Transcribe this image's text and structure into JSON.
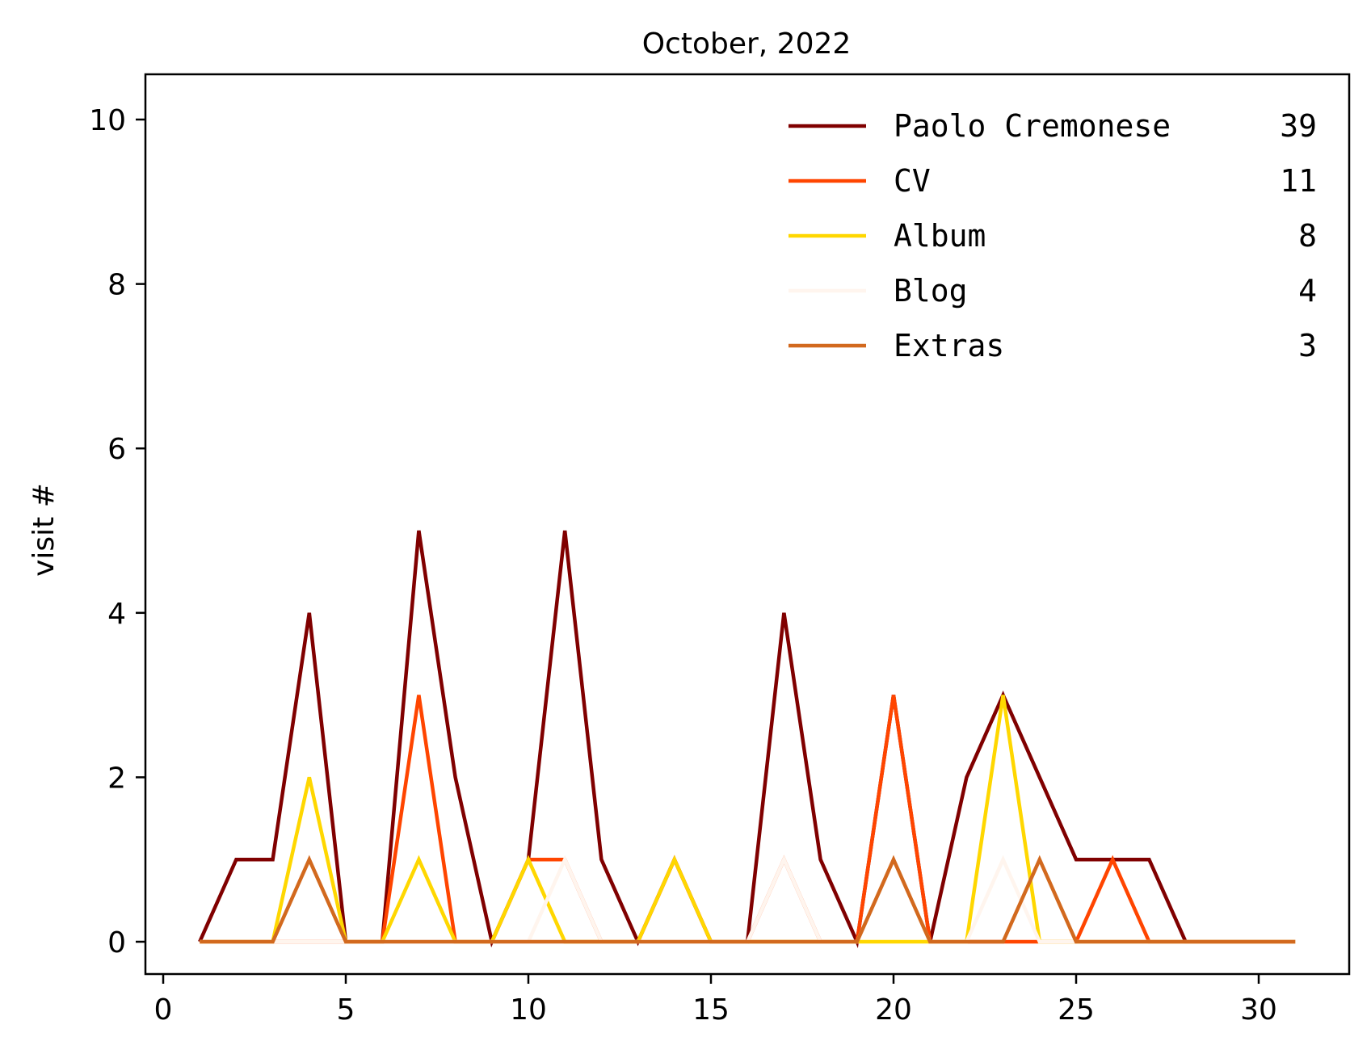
{
  "chart_data": {
    "type": "line",
    "title": "October, 2022",
    "xlabel": "",
    "ylabel": "visit #",
    "xlim": [
      -0.5,
      32.5
    ],
    "ylim": [
      -0.4,
      10.5
    ],
    "x_ticks": [
      0,
      5,
      10,
      15,
      20,
      25,
      30
    ],
    "y_ticks": [
      0,
      2,
      4,
      6,
      8,
      10
    ],
    "grid": false,
    "legend_position": "top-right",
    "x": [
      1,
      2,
      3,
      4,
      5,
      6,
      7,
      8,
      9,
      10,
      11,
      12,
      13,
      14,
      15,
      16,
      17,
      18,
      19,
      20,
      21,
      22,
      23,
      24,
      25,
      26,
      27,
      28,
      29,
      30,
      31
    ],
    "series": [
      {
        "name": "Paolo Cremonese",
        "total": "39",
        "color": "#800000",
        "values": [
          0,
          1,
          1,
          4,
          0,
          0,
          5,
          2,
          0,
          1,
          5,
          1,
          0,
          1,
          0,
          0,
          4,
          1,
          0,
          3,
          0,
          2,
          3,
          2,
          1,
          1,
          1,
          0,
          0,
          0,
          0
        ]
      },
      {
        "name": "CV",
        "total": "11",
        "color": "#ff4500",
        "values": [
          0,
          0,
          0,
          0,
          0,
          0,
          3,
          0,
          0,
          1,
          1,
          0,
          0,
          1,
          0,
          0,
          1,
          0,
          0,
          3,
          0,
          0,
          0,
          0,
          0,
          1,
          0,
          0,
          0,
          0,
          0
        ]
      },
      {
        "name": "Album",
        "total": "8",
        "color": "#ffd700",
        "values": [
          0,
          0,
          0,
          2,
          0,
          0,
          1,
          0,
          0,
          1,
          0,
          0,
          0,
          1,
          0,
          0,
          0,
          0,
          0,
          0,
          0,
          0,
          3,
          0,
          0,
          0,
          0,
          0,
          0,
          0,
          0
        ]
      },
      {
        "name": "Blog",
        "total": "4",
        "color": "#fff5ee",
        "values": [
          0,
          0,
          0,
          0,
          0,
          0,
          0,
          0,
          0,
          0,
          1,
          0,
          0,
          0,
          0,
          0,
          1,
          0,
          0,
          1,
          0,
          0,
          1,
          0,
          0,
          0,
          0,
          0,
          0,
          0,
          0
        ]
      },
      {
        "name": "Extras",
        "total": "3",
        "color": "#d2691e",
        "values": [
          0,
          0,
          0,
          1,
          0,
          0,
          0,
          0,
          0,
          0,
          0,
          0,
          0,
          0,
          0,
          0,
          0,
          0,
          0,
          1,
          0,
          0,
          0,
          1,
          0,
          0,
          0,
          0,
          0,
          0,
          0
        ]
      }
    ]
  }
}
